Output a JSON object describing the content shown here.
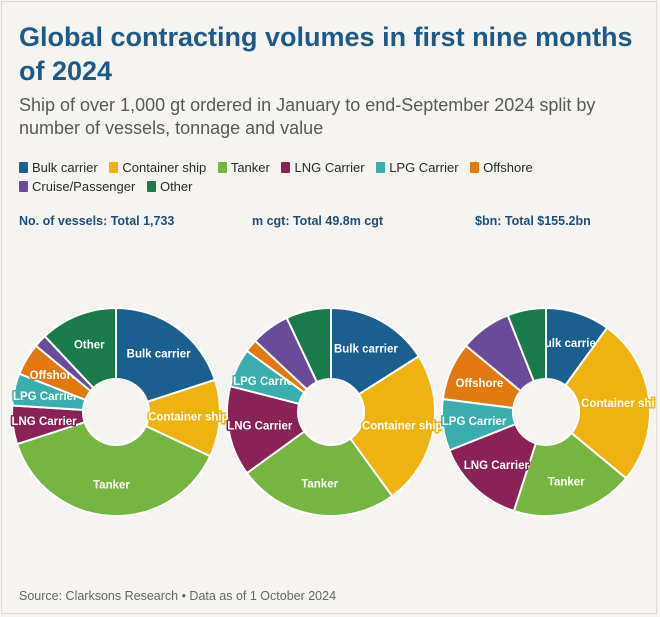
{
  "header": {
    "title": "Global contracting volumes in first nine months of 2024",
    "subtitle": "Ship of over 1,000 gt ordered in January to end-September 2024 split by number of vessels, tonnage and value"
  },
  "legend": [
    {
      "label": "Bulk carrier",
      "color": "#1b5f8f"
    },
    {
      "label": "Container ship",
      "color": "#efb311"
    },
    {
      "label": "Tanker",
      "color": "#77b542"
    },
    {
      "label": "LNG Carrier",
      "color": "#8a2257"
    },
    {
      "label": "LPG Carrier",
      "color": "#39aeae"
    },
    {
      "label": "Offshore",
      "color": "#e2790f"
    },
    {
      "label": "Cruise/Passenger",
      "color": "#6a4b9a"
    },
    {
      "label": "Other",
      "color": "#1a7a4a"
    }
  ],
  "panels": {
    "vessels": "No. of vessels: Total 1,733",
    "cgt": "m cgt: Total 49.8m cgt",
    "value": "$bn: Total $155.2bn"
  },
  "source": "Source: Clarksons Research • Data as of 1 October 2024",
  "chart_data": [
    {
      "type": "pie",
      "title": "No. of vessels: Total 1,733",
      "categories": [
        "Bulk carrier",
        "Container ship",
        "Tanker",
        "LNG Carrier",
        "LPG Carrier",
        "Offshore",
        "Cruise/Passenger",
        "Other"
      ],
      "values": [
        20,
        12,
        38,
        6,
        5,
        5,
        2,
        12
      ],
      "labels": {
        "Bulk carrier": "Bulk carrier",
        "Container ship": "Container ship",
        "Tanker": "Tanker",
        "LNG Carrier": "LNG Carrier",
        "LPG Carrier": "LPG Carrier",
        "Offshore": "Offshore",
        "Other": "Other"
      }
    },
    {
      "type": "pie",
      "title": "m cgt: Total 49.8m cgt",
      "categories": [
        "Bulk carrier",
        "Container ship",
        "Tanker",
        "LNG Carrier",
        "LPG Carrier",
        "Offshore",
        "Cruise/Passenger",
        "Other"
      ],
      "values": [
        16,
        24,
        25,
        14,
        6,
        2,
        6,
        7
      ],
      "labels": {
        "Bulk carrier": "Bulk carrier",
        "Container ship": "Container ship",
        "Tanker": "Tanker",
        "LNG Carrier": "LNG Carrier",
        "LPG Carrier": "LPG Carrier"
      }
    },
    {
      "type": "pie",
      "title": "$bn: Total $155.2bn",
      "categories": [
        "Bulk carrier",
        "Container ship",
        "Tanker",
        "LNG Carrier",
        "LPG Carrier",
        "Offshore",
        "Cruise/Passenger",
        "Other"
      ],
      "values": [
        10,
        26,
        19,
        14,
        8,
        9,
        8,
        6
      ],
      "labels": {
        "Bulk carrier": "Bulk carrier",
        "Container ship": "Container shi",
        "Tanker": "Tanker",
        "LNG Carrier": "LNG Carrier",
        "LPG Carrier": "LPG Carrier",
        "Offshore": "Offshore"
      }
    }
  ]
}
